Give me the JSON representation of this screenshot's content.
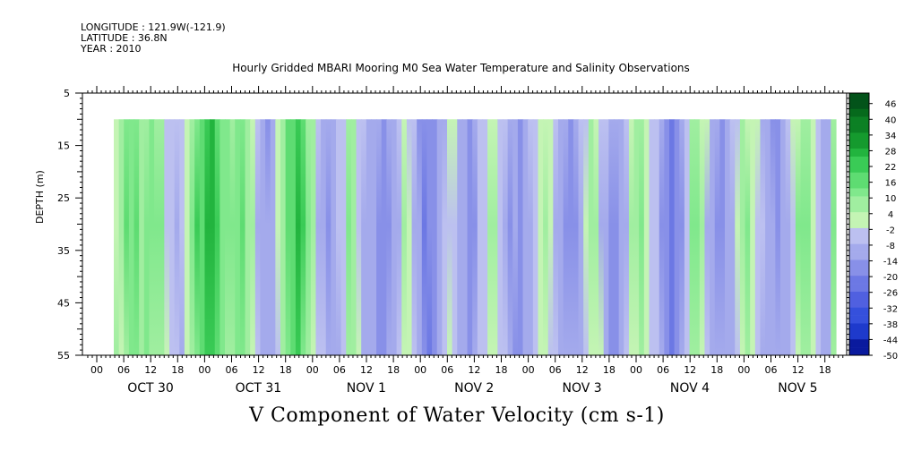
{
  "header": {
    "longitude": "LONGITUDE : 121.9W(-121.9)",
    "latitude": "LATITUDE : 36.8N",
    "year": "YEAR : 2010"
  },
  "chart_data": {
    "type": "heatmap",
    "title": "Hourly Gridded MBARI Mooring M0 Sea Water Temperature and Salinity Observations",
    "xlabel": "V Component of Water Velocity (cm s-1)",
    "ylabel": "DEPTH (m)",
    "ylim": [
      5,
      55
    ],
    "y_inverted": true,
    "y_ticks": [
      5,
      15,
      25,
      35,
      45,
      55
    ],
    "data_depth_range": [
      10,
      55
    ],
    "x_hour_ticks": [
      "00",
      "06",
      "12",
      "18",
      "00",
      "06",
      "12",
      "18",
      "00",
      "06",
      "12",
      "18",
      "00",
      "06",
      "12",
      "18",
      "00",
      "06",
      "12",
      "18",
      "00",
      "06",
      "12",
      "18",
      "00",
      "06",
      "12",
      "18"
    ],
    "x_dates": [
      "OCT 30",
      "OCT 31",
      "NOV  1",
      "NOV  2",
      "NOV  3",
      "NOV  4",
      "NOV  5"
    ],
    "colorbar": {
      "labels": [
        "46",
        "40",
        "34",
        "28",
        "22",
        "16",
        "10",
        "4",
        "-2",
        "-8",
        "-14",
        "-20",
        "-26",
        "-32",
        "-38",
        "-44",
        "-50"
      ],
      "min": -50,
      "max": 50,
      "step": 3,
      "neg_colors": [
        "#00005a",
        "#0a1a9e",
        "#1e3acc",
        "#3550dc",
        "#5060e0",
        "#6c78e4",
        "#8890e8",
        "#a4aaec",
        "#bcc0f0"
      ],
      "pos_colors": [
        "#c4f4b4",
        "#a0eea0",
        "#80e88c",
        "#5edc72",
        "#3acb56",
        "#22b43e",
        "#159a2e",
        "#0c8024",
        "#066a1c",
        "#03531a"
      ]
    },
    "column_values_cm_s": [
      4,
      6,
      10,
      12,
      10,
      8,
      8,
      12,
      10,
      6,
      0,
      -4,
      -6,
      -4,
      2,
      10,
      14,
      16,
      22,
      26,
      20,
      14,
      8,
      6,
      10,
      14,
      8,
      2,
      -4,
      -8,
      -10,
      -6,
      0,
      8,
      14,
      18,
      22,
      16,
      10,
      4,
      -2,
      -6,
      -10,
      -8,
      -4,
      0,
      6,
      4,
      0,
      -4,
      -8,
      -10,
      -12,
      -14,
      -10,
      -6,
      -2,
      2,
      0,
      -4,
      -10,
      -14,
      -16,
      -12,
      -8,
      -4,
      0,
      -2,
      -6,
      -10,
      -12,
      -10,
      -6,
      -2,
      2,
      4,
      -2,
      -6,
      -10,
      -12,
      -14,
      -10,
      -6,
      -2,
      2,
      4,
      0,
      -4,
      -8,
      -10,
      -12,
      -8,
      -4,
      0,
      4,
      2,
      -2,
      -6,
      -10,
      -12,
      -8,
      -4,
      2,
      6,
      8,
      4,
      -2,
      -6,
      -10,
      -14,
      -16,
      -12,
      -8,
      -2,
      4,
      8,
      4,
      -2,
      -6,
      -10,
      -12,
      -8,
      -4,
      0,
      4,
      6,
      2,
      -2,
      -6,
      -8,
      -10,
      -12,
      -8,
      -4,
      0,
      4,
      8,
      6,
      2,
      -2,
      -6,
      -8,
      6
    ]
  }
}
